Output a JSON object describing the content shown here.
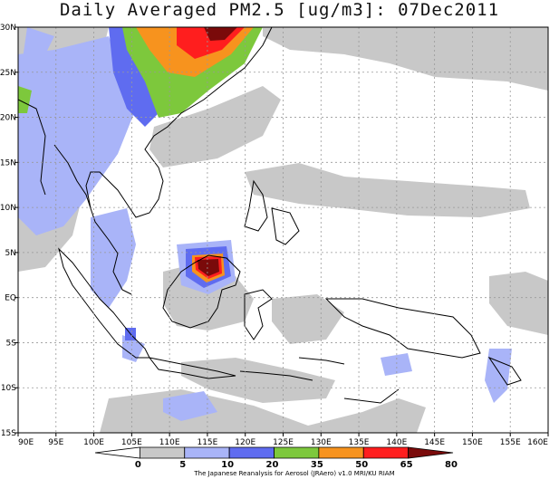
{
  "map": {
    "title": "Daily Averaged PM2.5 [ug/m3]: 07Dec2011",
    "lat_ticks": [
      {
        "label": "30N",
        "lat": 30
      },
      {
        "label": "25N",
        "lat": 25
      },
      {
        "label": "20N",
        "lat": 20
      },
      {
        "label": "15N",
        "lat": 15
      },
      {
        "label": "10N",
        "lat": 10
      },
      {
        "label": "5N",
        "lat": 5
      },
      {
        "label": "EQ",
        "lat": 0
      },
      {
        "label": "5S",
        "lat": -5
      },
      {
        "label": "10S",
        "lat": -10
      },
      {
        "label": "15S",
        "lat": -15
      }
    ],
    "lon_ticks": [
      {
        "label": "90E",
        "lon": 90
      },
      {
        "label": "95E",
        "lon": 95
      },
      {
        "label": "100E",
        "lon": 100
      },
      {
        "label": "105E",
        "lon": 105
      },
      {
        "label": "110E",
        "lon": 110
      },
      {
        "label": "115E",
        "lon": 115
      },
      {
        "label": "120E",
        "lon": 120
      },
      {
        "label": "125E",
        "lon": 125
      },
      {
        "label": "130E",
        "lon": 130
      },
      {
        "label": "135E",
        "lon": 135
      },
      {
        "label": "140E",
        "lon": 140
      },
      {
        "label": "145E",
        "lon": 145
      },
      {
        "label": "150E",
        "lon": 150
      },
      {
        "label": "155E",
        "lon": 155
      },
      {
        "label": "160E",
        "lon": 160
      }
    ],
    "extent": {
      "lon": [
        90,
        160
      ],
      "lat": [
        -15,
        30
      ]
    }
  },
  "colorbar": {
    "levels": [
      "0",
      "5",
      "10",
      "20",
      "35",
      "50",
      "65",
      "80"
    ],
    "colors": [
      "#ffffff",
      "#c8c8c8",
      "#a9b4f8",
      "#5f6cf0",
      "#7dc83c",
      "#f7931e",
      "#ff1e1e",
      "#7a0a0a"
    ]
  },
  "credit": "The Japanese Reanalysis for Aerosol (JRAero) v1.0 MRI/KU RIAM"
}
